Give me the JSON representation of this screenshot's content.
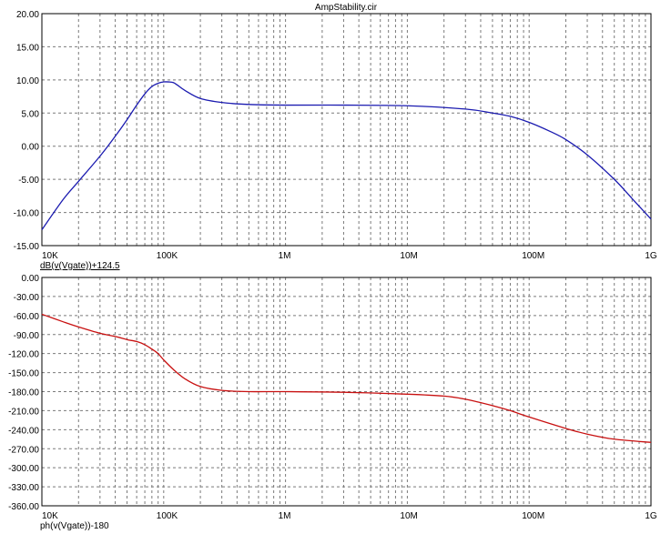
{
  "window": {
    "title": "AmpStability.cir"
  },
  "colors": {
    "magnitude": "#1b1bb0",
    "phase": "#c81010",
    "grid": "#7a7a7a",
    "axis": "#000000"
  },
  "chart_data": [
    {
      "type": "line",
      "name": "magnitude-plot",
      "xscale": "log",
      "xlim": [
        10000,
        1000000000
      ],
      "ylim": [
        -15,
        20
      ],
      "xticks": [
        "10K",
        "100K",
        "1M",
        "10M",
        "100M",
        "1G"
      ],
      "yticks": [
        "20.00",
        "15.00",
        "10.00",
        "5.00",
        "0.00",
        "-5.00",
        "-10.00",
        "-15.00"
      ],
      "series": [
        {
          "name": "dB(v(Vgate))+124.5",
          "x": [
            10000,
            15000,
            20000,
            30000,
            40000,
            50000,
            60000,
            70000,
            80000,
            90000,
            100000,
            110000,
            120000,
            130000,
            150000,
            200000,
            300000,
            500000,
            1000000,
            3000000,
            10000000,
            30000000,
            50000000,
            70000000,
            100000000,
            150000000,
            200000000,
            300000000,
            500000000,
            700000000,
            1000000000
          ],
          "y": [
            -12.6,
            -8.0,
            -5.3,
            -1.5,
            1.5,
            4.0,
            6.2,
            7.9,
            9.0,
            9.5,
            9.7,
            9.7,
            9.6,
            9.2,
            8.4,
            7.2,
            6.6,
            6.3,
            6.2,
            6.2,
            6.1,
            5.6,
            5.0,
            4.5,
            3.6,
            2.2,
            1.0,
            -1.3,
            -5.0,
            -7.9,
            -11.0
          ]
        }
      ]
    },
    {
      "type": "line",
      "name": "phase-plot",
      "xscale": "log",
      "xlim": [
        10000,
        1000000000
      ],
      "ylim": [
        -360,
        0
      ],
      "xticks": [
        "10K",
        "100K",
        "1M",
        "10M",
        "100M",
        "1G"
      ],
      "yticks": [
        "0.00",
        "-30.00",
        "-60.00",
        "-90.00",
        "-120.00",
        "-150.00",
        "-180.00",
        "-210.00",
        "-240.00",
        "-270.00",
        "-300.00",
        "-330.00",
        "-360.00"
      ],
      "series": [
        {
          "name": "ph(v(Vgate))-180",
          "x": [
            10000,
            15000,
            20000,
            30000,
            40000,
            50000,
            60000,
            70000,
            80000,
            90000,
            100000,
            120000,
            150000,
            200000,
            300000,
            500000,
            1000000,
            3000000,
            10000000,
            20000000,
            30000000,
            50000000,
            70000000,
            100000000,
            200000000,
            300000000,
            500000000,
            1000000000
          ],
          "y": [
            -58,
            -70,
            -78,
            -88,
            -93,
            -98,
            -101,
            -106,
            -113,
            -120,
            -130,
            -145,
            -160,
            -172,
            -178,
            -180,
            -180,
            -181,
            -184,
            -187,
            -192,
            -202,
            -210,
            -220,
            -238,
            -247,
            -255,
            -260
          ]
        }
      ]
    }
  ]
}
